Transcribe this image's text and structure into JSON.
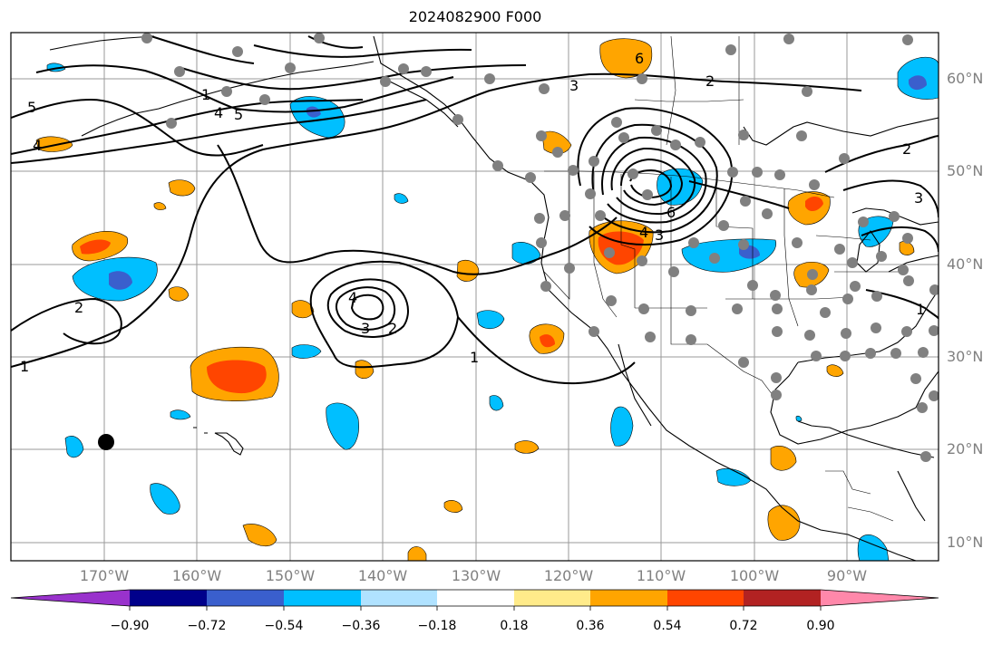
{
  "title": "2024082900 F000",
  "map": {
    "region": "North-East Pacific / North America",
    "projection": "PlateCarree",
    "lon_range": [
      "175°W",
      "80°W"
    ],
    "lat_range": [
      "8°N",
      "65°N"
    ],
    "gridlines": true,
    "coastlines": true,
    "state_borders": true,
    "contour_labels": [
      "1",
      "2",
      "3",
      "4",
      "5",
      "6",
      "1",
      "2",
      "3",
      "4",
      "2",
      "2",
      "3",
      "1"
    ],
    "station_markers": "gray dots over land",
    "storm_marker": "black dot near 170°W 21°N"
  },
  "axes": {
    "lat_labels": [
      "60°N",
      "50°N",
      "40°N",
      "30°N",
      "20°N",
      "10°N"
    ],
    "lon_labels": [
      "170°W",
      "160°W",
      "150°W",
      "140°W",
      "130°W",
      "120°W",
      "110°W",
      "100°W",
      "90°W"
    ]
  },
  "colorbar": {
    "ticks": [
      "−0.90",
      "−0.72",
      "−0.54",
      "−0.36",
      "−0.18",
      "0.18",
      "0.36",
      "0.54",
      "0.72",
      "0.90"
    ],
    "colors": [
      "#9932cc",
      "#00008b",
      "#3a5fcd",
      "#00bfff",
      "#b0e2ff",
      "#ffffff",
      "#ffeb8a",
      "#ffa500",
      "#ff4500",
      "#b22222",
      "#ff88aa"
    ]
  }
}
